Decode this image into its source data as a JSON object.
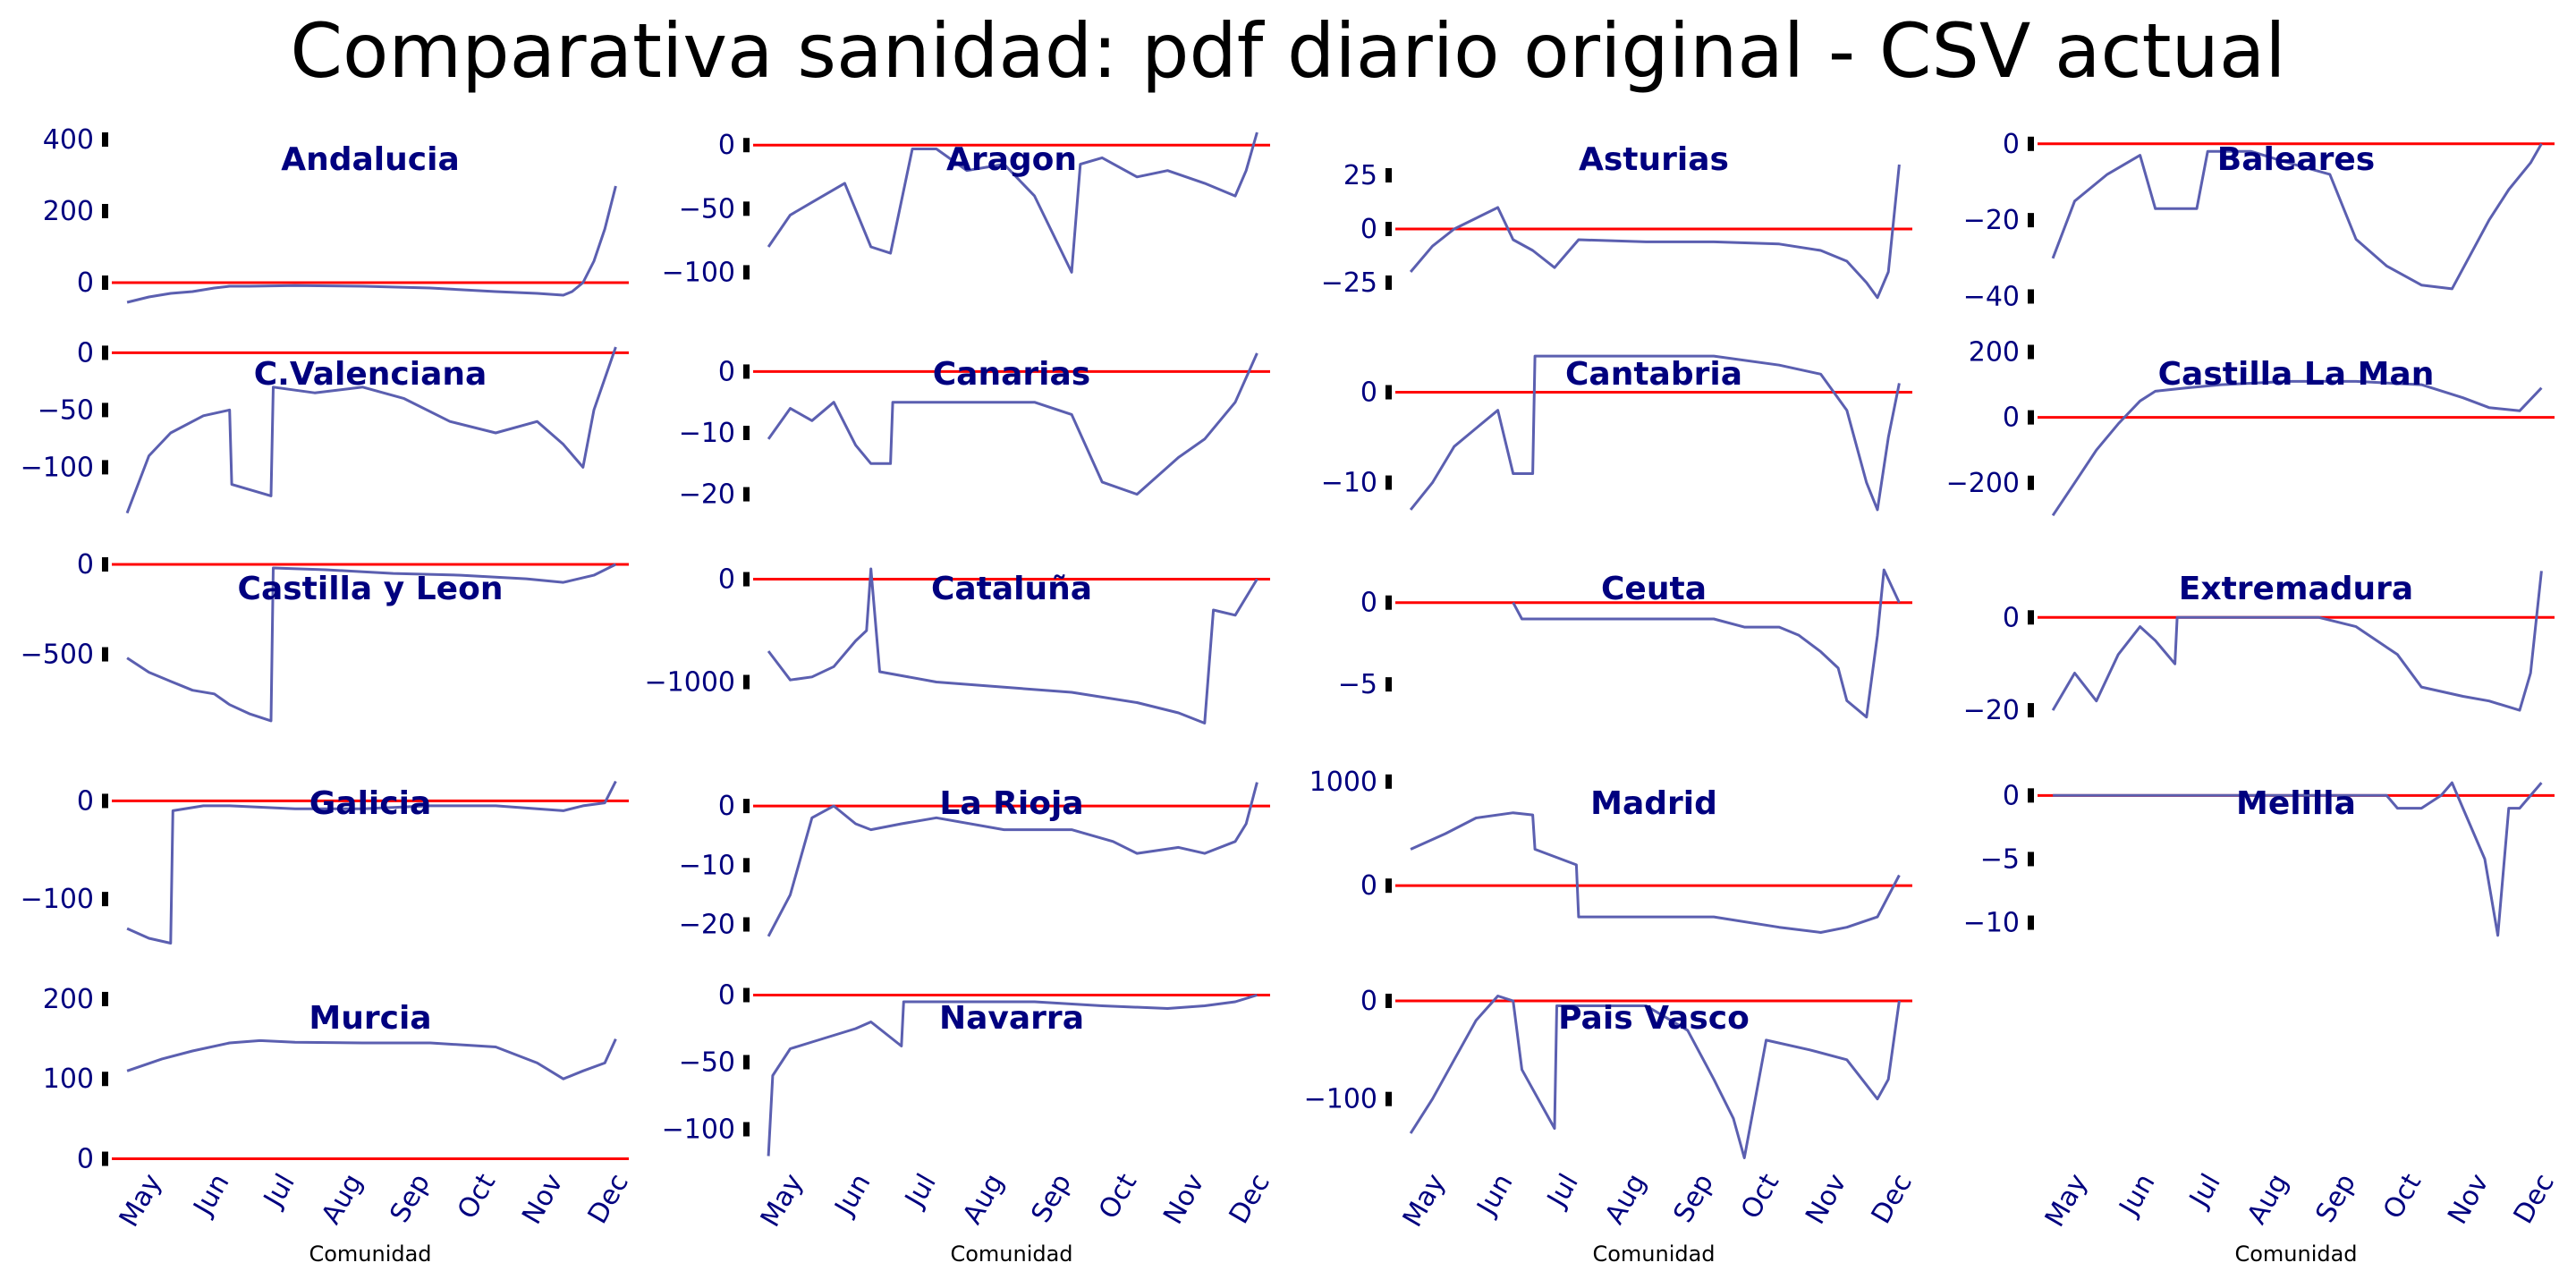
{
  "title": "Comparativa sanidad: pdf diario original - CSV actual",
  "colors": {
    "text": "#00007f",
    "series": "#5b5fb0",
    "zero_line": "#ff0000"
  },
  "chart_data": [
    {
      "type": "line",
      "title": "Andalucia",
      "ylim": [
        -60,
        420
      ],
      "yticks": [
        0,
        200,
        400
      ],
      "x": [
        "2020-04-15",
        "2020-04-25",
        "2020-05-05",
        "2020-05-15",
        "2020-05-25",
        "2020-06-01",
        "2020-06-10",
        "2020-07-01",
        "2020-08-01",
        "2020-09-01",
        "2020-10-01",
        "2020-10-20",
        "2020-11-01",
        "2020-11-05",
        "2020-11-10",
        "2020-11-15",
        "2020-11-20",
        "2020-11-25"
      ],
      "y": [
        -55,
        -40,
        -30,
        -25,
        -15,
        -10,
        -10,
        -8,
        -10,
        -15,
        -25,
        -30,
        -35,
        -25,
        0,
        60,
        150,
        270
      ],
      "xlabel": ""
    },
    {
      "type": "line",
      "title": "Aragon",
      "ylim": [
        -125,
        10
      ],
      "yticks": [
        0,
        -50,
        -100
      ],
      "x": [
        "2020-04-15",
        "2020-04-25",
        "2020-05-05",
        "2020-05-20",
        "2020-06-01",
        "2020-06-10",
        "2020-06-20",
        "2020-07-01",
        "2020-07-15",
        "2020-08-01",
        "2020-08-15",
        "2020-09-01",
        "2020-09-05",
        "2020-09-15",
        "2020-10-01",
        "2020-10-15",
        "2020-11-01",
        "2020-11-15",
        "2020-11-20",
        "2020-11-25"
      ],
      "y": [
        -80,
        -55,
        -45,
        -30,
        -80,
        -85,
        -3,
        -3,
        -20,
        -15,
        -40,
        -100,
        -15,
        -10,
        -25,
        -20,
        -30,
        -40,
        -20,
        10
      ],
      "xlabel": ""
    },
    {
      "type": "line",
      "title": "Asturias",
      "ylim": [
        -35,
        45
      ],
      "yticks": [
        25,
        0,
        -25
      ],
      "x": [
        "2020-04-15",
        "2020-04-25",
        "2020-05-05",
        "2020-05-15",
        "2020-05-25",
        "2020-06-01",
        "2020-06-10",
        "2020-06-20",
        "2020-07-01",
        "2020-08-01",
        "2020-09-01",
        "2020-10-01",
        "2020-10-20",
        "2020-11-01",
        "2020-11-10",
        "2020-11-15",
        "2020-11-20",
        "2020-11-25"
      ],
      "y": [
        -20,
        -8,
        0,
        5,
        10,
        -5,
        -10,
        -18,
        -5,
        -6,
        -6,
        -7,
        -10,
        -15,
        -25,
        -32,
        -20,
        30
      ],
      "xlabel": ""
    },
    {
      "type": "line",
      "title": "Baleares",
      "ylim": [
        -42,
        3
      ],
      "yticks": [
        0,
        -20,
        -40
      ],
      "x": [
        "2020-04-15",
        "2020-04-25",
        "2020-05-10",
        "2020-05-25",
        "2020-06-01",
        "2020-06-20",
        "2020-06-25",
        "2020-07-15",
        "2020-08-01",
        "2020-08-20",
        "2020-09-01",
        "2020-09-15",
        "2020-10-01",
        "2020-10-15",
        "2020-11-01",
        "2020-11-10",
        "2020-11-20",
        "2020-11-25"
      ],
      "y": [
        -30,
        -15,
        -8,
        -3,
        -17,
        -17,
        -2,
        -2,
        -5,
        -8,
        -25,
        -32,
        -37,
        -38,
        -20,
        -12,
        -5,
        0
      ],
      "xlabel": ""
    },
    {
      "type": "line",
      "title": "C.Valenciana",
      "ylim": [
        -145,
        5
      ],
      "yticks": [
        0,
        -50,
        -100
      ],
      "x": [
        "2020-04-15",
        "2020-04-25",
        "2020-05-05",
        "2020-05-20",
        "2020-06-01",
        "2020-06-02",
        "2020-06-20",
        "2020-06-21",
        "2020-07-10",
        "2020-08-01",
        "2020-08-20",
        "2020-09-10",
        "2020-10-01",
        "2020-10-20",
        "2020-11-01",
        "2020-11-10",
        "2020-11-15",
        "2020-11-25"
      ],
      "y": [
        -140,
        -90,
        -70,
        -55,
        -50,
        -115,
        -125,
        -30,
        -35,
        -30,
        -40,
        -60,
        -70,
        -60,
        -80,
        -100,
        -50,
        5
      ],
      "xlabel": ""
    },
    {
      "type": "line",
      "title": "Canarias",
      "ylim": [
        -24,
        4
      ],
      "yticks": [
        0,
        -10,
        -20
      ],
      "x": [
        "2020-04-15",
        "2020-04-25",
        "2020-05-05",
        "2020-05-15",
        "2020-05-25",
        "2020-06-01",
        "2020-06-10",
        "2020-06-11",
        "2020-07-15",
        "2020-08-15",
        "2020-09-01",
        "2020-09-15",
        "2020-10-01",
        "2020-10-20",
        "2020-11-01",
        "2020-11-15",
        "2020-11-25"
      ],
      "y": [
        -11,
        -6,
        -8,
        -5,
        -12,
        -15,
        -15,
        -5,
        -5,
        -5,
        -7,
        -18,
        -20,
        -14,
        -11,
        -5,
        3
      ],
      "xlabel": ""
    },
    {
      "type": "line",
      "title": "Cantabria",
      "ylim": [
        -14,
        5
      ],
      "yticks": [
        0,
        -10
      ],
      "x": [
        "2020-04-15",
        "2020-04-25",
        "2020-05-05",
        "2020-05-15",
        "2020-05-25",
        "2020-06-01",
        "2020-06-10",
        "2020-06-11",
        "2020-07-01",
        "2020-08-01",
        "2020-09-01",
        "2020-10-01",
        "2020-10-20",
        "2020-11-01",
        "2020-11-10",
        "2020-11-15",
        "2020-11-20",
        "2020-11-25"
      ],
      "y": [
        -13,
        -10,
        -6,
        -4,
        -2,
        -9,
        -9,
        4,
        4,
        4,
        4,
        3,
        2,
        -2,
        -10,
        -13,
        -5,
        1
      ],
      "xlabel": ""
    },
    {
      "type": "line",
      "title": "Castilla La Man",
      "ylim": [
        -310,
        215
      ],
      "yticks": [
        200,
        0,
        -200
      ],
      "x": [
        "2020-04-15",
        "2020-04-25",
        "2020-05-05",
        "2020-05-15",
        "2020-05-25",
        "2020-06-01",
        "2020-06-15",
        "2020-07-01",
        "2020-08-01",
        "2020-09-01",
        "2020-10-01",
        "2020-10-20",
        "2020-11-01",
        "2020-11-15",
        "2020-11-25"
      ],
      "y": [
        -300,
        -200,
        -100,
        -20,
        50,
        80,
        90,
        100,
        110,
        110,
        100,
        60,
        30,
        20,
        90
      ],
      "xlabel": ""
    },
    {
      "type": "line",
      "title": "Castilla y Leon",
      "ylim": [
        -940,
        15
      ],
      "yticks": [
        0,
        -500
      ],
      "x": [
        "2020-04-15",
        "2020-04-25",
        "2020-05-05",
        "2020-05-15",
        "2020-05-25",
        "2020-06-01",
        "2020-06-10",
        "2020-06-20",
        "2020-06-21",
        "2020-07-15",
        "2020-08-15",
        "2020-09-15",
        "2020-10-15",
        "2020-11-01",
        "2020-11-15",
        "2020-11-25"
      ],
      "y": [
        -520,
        -600,
        -650,
        -700,
        -720,
        -780,
        -830,
        -870,
        -20,
        -30,
        -50,
        -60,
        -80,
        -100,
        -60,
        0
      ],
      "xlabel": ""
    },
    {
      "type": "line",
      "title": "Cataluña",
      "ylim": [
        -1500,
        170
      ],
      "yticks": [
        0,
        -1000
      ],
      "x": [
        "2020-04-15",
        "2020-04-25",
        "2020-05-05",
        "2020-05-15",
        "2020-05-25",
        "2020-05-30",
        "2020-06-01",
        "2020-06-05",
        "2020-07-01",
        "2020-08-01",
        "2020-09-01",
        "2020-10-01",
        "2020-10-20",
        "2020-11-01",
        "2020-11-05",
        "2020-11-15",
        "2020-11-25"
      ],
      "y": [
        -700,
        -980,
        -950,
        -850,
        -600,
        -500,
        100,
        -900,
        -1000,
        -1050,
        -1100,
        -1200,
        -1300,
        -1400,
        -300,
        -350,
        0
      ],
      "xlabel": ""
    },
    {
      "type": "line",
      "title": "Ceuta",
      "ylim": [
        -8,
        2.5
      ],
      "yticks": [
        0,
        -5
      ],
      "x": [
        "2020-06-01",
        "2020-06-05",
        "2020-07-01",
        "2020-08-01",
        "2020-09-01",
        "2020-09-15",
        "2020-10-01",
        "2020-10-10",
        "2020-10-20",
        "2020-10-28",
        "2020-11-01",
        "2020-11-10",
        "2020-11-15",
        "2020-11-18",
        "2020-11-25"
      ],
      "y": [
        0,
        -1,
        -1,
        -1,
        -1,
        -1.5,
        -1.5,
        -2,
        -3,
        -4,
        -6,
        -7,
        -2,
        2,
        0
      ],
      "xlabel": ""
    },
    {
      "type": "line",
      "title": "Extremadura",
      "ylim": [
        -25,
        12
      ],
      "yticks": [
        0,
        -20
      ],
      "x": [
        "2020-04-15",
        "2020-04-25",
        "2020-05-05",
        "2020-05-15",
        "2020-05-25",
        "2020-06-01",
        "2020-06-10",
        "2020-06-11",
        "2020-07-15",
        "2020-08-15",
        "2020-09-01",
        "2020-09-20",
        "2020-10-01",
        "2020-10-20",
        "2020-11-01",
        "2020-11-15",
        "2020-11-20",
        "2020-11-25"
      ],
      "y": [
        -20,
        -12,
        -18,
        -8,
        -2,
        -5,
        -10,
        0,
        0,
        0,
        -2,
        -8,
        -15,
        -17,
        -18,
        -20,
        -12,
        10
      ],
      "xlabel": ""
    },
    {
      "type": "line",
      "title": "Galicia",
      "ylim": [
        -150,
        25
      ],
      "yticks": [
        0,
        -100
      ],
      "x": [
        "2020-04-15",
        "2020-04-25",
        "2020-05-05",
        "2020-05-06",
        "2020-05-20",
        "2020-06-01",
        "2020-07-01",
        "2020-08-01",
        "2020-09-01",
        "2020-10-01",
        "2020-10-20",
        "2020-11-01",
        "2020-11-10",
        "2020-11-20",
        "2020-11-25"
      ],
      "y": [
        -130,
        -140,
        -145,
        -10,
        -5,
        -5,
        -8,
        -8,
        -5,
        -5,
        -8,
        -10,
        -5,
        -2,
        20
      ],
      "xlabel": ""
    },
    {
      "type": "line",
      "title": "La Rioja",
      "ylim": [
        -24,
        5
      ],
      "yticks": [
        0,
        -10,
        -20
      ],
      "x": [
        "2020-04-15",
        "2020-04-25",
        "2020-05-05",
        "2020-05-15",
        "2020-05-25",
        "2020-06-01",
        "2020-06-15",
        "2020-07-01",
        "2020-08-01",
        "2020-09-01",
        "2020-09-20",
        "2020-10-01",
        "2020-10-20",
        "2020-11-01",
        "2020-11-15",
        "2020-11-20",
        "2020-11-25"
      ],
      "y": [
        -22,
        -15,
        -2,
        0,
        -3,
        -4,
        -3,
        -2,
        -4,
        -4,
        -6,
        -8,
        -7,
        -8,
        -6,
        -3,
        4
      ],
      "xlabel": ""
    },
    {
      "type": "line",
      "title": "Madrid",
      "ylim": [
        -600,
        1050
      ],
      "yticks": [
        1000,
        0
      ],
      "x": [
        "2020-04-15",
        "2020-05-01",
        "2020-05-15",
        "2020-06-01",
        "2020-06-10",
        "2020-06-11",
        "2020-06-30",
        "2020-07-01",
        "2020-08-01",
        "2020-09-01",
        "2020-10-01",
        "2020-10-20",
        "2020-11-01",
        "2020-11-15",
        "2020-11-25"
      ],
      "y": [
        350,
        500,
        650,
        700,
        680,
        350,
        200,
        -300,
        -300,
        -300,
        -400,
        -450,
        -400,
        -300,
        100
      ],
      "xlabel": ""
    },
    {
      "type": "line",
      "title": "Melilla",
      "ylim": [
        -12,
        1.5
      ],
      "yticks": [
        0,
        -5,
        -10
      ],
      "x": [
        "2020-04-15",
        "2020-05-15",
        "2020-06-15",
        "2020-07-15",
        "2020-08-15",
        "2020-09-15",
        "2020-09-20",
        "2020-10-01",
        "2020-10-10",
        "2020-10-15",
        "2020-10-20",
        "2020-10-30",
        "2020-11-05",
        "2020-11-10",
        "2020-11-15",
        "2020-11-25"
      ],
      "y": [
        0,
        0,
        0,
        0,
        0,
        0,
        -1,
        -1,
        0,
        1,
        -1,
        -5,
        -11,
        -1,
        -1,
        1
      ],
      "xlabel": ""
    },
    {
      "type": "line",
      "title": "Murcia",
      "ylim": [
        -5,
        210
      ],
      "yticks": [
        200,
        100,
        0
      ],
      "x": [
        "2020-04-15",
        "2020-05-01",
        "2020-05-15",
        "2020-06-01",
        "2020-06-15",
        "2020-07-01",
        "2020-08-01",
        "2020-09-01",
        "2020-10-01",
        "2020-10-20",
        "2020-11-01",
        "2020-11-10",
        "2020-11-20",
        "2020-11-25"
      ],
      "y": [
        110,
        125,
        135,
        145,
        148,
        146,
        145,
        145,
        140,
        120,
        100,
        110,
        120,
        150
      ],
      "xlabel": "Comunidad",
      "xticklabels": [
        "May",
        "Jun",
        "Jul",
        "Aug",
        "Sep",
        "Oct",
        "Nov",
        "Dec"
      ]
    },
    {
      "type": "line",
      "title": "Navarra",
      "ylim": [
        -125,
        3
      ],
      "yticks": [
        0,
        -50,
        -100
      ],
      "x": [
        "2020-04-15",
        "2020-04-17",
        "2020-04-25",
        "2020-05-05",
        "2020-05-15",
        "2020-05-25",
        "2020-06-01",
        "2020-06-15",
        "2020-06-16",
        "2020-07-15",
        "2020-08-15",
        "2020-09-15",
        "2020-10-15",
        "2020-11-01",
        "2020-11-15",
        "2020-11-25"
      ],
      "y": [
        -120,
        -60,
        -40,
        -35,
        -30,
        -25,
        -20,
        -38,
        -5,
        -5,
        -5,
        -8,
        -10,
        -8,
        -5,
        0
      ],
      "xlabel": "Comunidad",
      "xticklabels": [
        "May",
        "Jun",
        "Jul",
        "Aug",
        "Sep",
        "Oct",
        "Nov",
        "Dec"
      ]
    },
    {
      "type": "line",
      "title": "Pais Vasco",
      "ylim": [
        -165,
        10
      ],
      "yticks": [
        0,
        -100
      ],
      "x": [
        "2020-04-15",
        "2020-04-25",
        "2020-05-05",
        "2020-05-15",
        "2020-05-25",
        "2020-06-01",
        "2020-06-05",
        "2020-06-20",
        "2020-06-21",
        "2020-07-15",
        "2020-08-01",
        "2020-08-20",
        "2020-09-01",
        "2020-09-10",
        "2020-09-15",
        "2020-09-25",
        "2020-10-15",
        "2020-11-01",
        "2020-11-15",
        "2020-11-20",
        "2020-11-25"
      ],
      "y": [
        -135,
        -100,
        -60,
        -20,
        5,
        0,
        -70,
        -130,
        -5,
        -5,
        -5,
        -30,
        -80,
        -120,
        -160,
        -40,
        -50,
        -60,
        -100,
        -80,
        0
      ],
      "xlabel": "Comunidad",
      "xticklabels": [
        "May",
        "Jun",
        "Jul",
        "Aug",
        "Sep",
        "Oct",
        "Nov",
        "Dec"
      ]
    },
    {
      "type": "axis",
      "title": "",
      "xlabel": "Comunidad",
      "xticklabels": [
        "May",
        "Jun",
        "Jul",
        "Aug",
        "Sep",
        "Oct",
        "Nov",
        "Dec"
      ]
    }
  ]
}
